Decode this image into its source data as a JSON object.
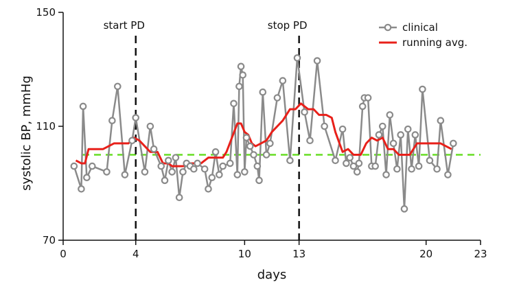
{
  "chart_data": {
    "type": "line",
    "xlabel": "days",
    "ylabel": "systolic BP, mmHg",
    "xlim": [
      0,
      23
    ],
    "ylim": [
      70,
      150
    ],
    "xticks": [
      0,
      4,
      10,
      13,
      20,
      23
    ],
    "yticks": [
      70,
      110,
      150
    ],
    "grid": false,
    "legend_position": "top-right",
    "reference_line": {
      "y": 100,
      "style": "dashed",
      "color": "#66dd22"
    },
    "annotations": [
      {
        "x": 4,
        "label": "start PD"
      },
      {
        "x": 13,
        "label": "stop PD"
      }
    ],
    "series": [
      {
        "name": "clinical",
        "color": "#8a8a8a",
        "marker": "circle",
        "points": [
          [
            0.6,
            96
          ],
          [
            1.0,
            88
          ],
          [
            1.1,
            117
          ],
          [
            1.3,
            92
          ],
          [
            1.6,
            96
          ],
          [
            2.4,
            94
          ],
          [
            2.7,
            112
          ],
          [
            3.0,
            124
          ],
          [
            3.4,
            93
          ],
          [
            3.8,
            105
          ],
          [
            4.0,
            113
          ],
          [
            4.5,
            94
          ],
          [
            4.8,
            110
          ],
          [
            5.0,
            102
          ],
          [
            5.4,
            96
          ],
          [
            5.6,
            91
          ],
          [
            5.8,
            98
          ],
          [
            6.0,
            94
          ],
          [
            6.2,
            99
          ],
          [
            6.4,
            85
          ],
          [
            6.6,
            94
          ],
          [
            6.8,
            97
          ],
          [
            7.0,
            96
          ],
          [
            7.2,
            95
          ],
          [
            7.4,
            97
          ],
          [
            7.8,
            95
          ],
          [
            8.0,
            88
          ],
          [
            8.2,
            92
          ],
          [
            8.4,
            101
          ],
          [
            8.6,
            93
          ],
          [
            8.8,
            96
          ],
          [
            9.2,
            97
          ],
          [
            9.4,
            118
          ],
          [
            9.6,
            93
          ],
          [
            9.7,
            124
          ],
          [
            9.8,
            131
          ],
          [
            9.9,
            128
          ],
          [
            10.0,
            94
          ],
          [
            10.1,
            106
          ],
          [
            10.3,
            103
          ],
          [
            10.5,
            100
          ],
          [
            10.7,
            96
          ],
          [
            10.8,
            91
          ],
          [
            11.0,
            122
          ],
          [
            11.2,
            100
          ],
          [
            11.4,
            104
          ],
          [
            11.8,
            120
          ],
          [
            12.1,
            126
          ],
          [
            12.5,
            98
          ],
          [
            12.9,
            134
          ],
          [
            13.3,
            115
          ],
          [
            13.6,
            105
          ],
          [
            14.0,
            133
          ],
          [
            14.4,
            110
          ],
          [
            15.0,
            98
          ],
          [
            15.4,
            109
          ],
          [
            15.6,
            97
          ],
          [
            15.8,
            99
          ],
          [
            16.0,
            96
          ],
          [
            16.2,
            94
          ],
          [
            16.3,
            97
          ],
          [
            16.5,
            117
          ],
          [
            16.6,
            120
          ],
          [
            16.8,
            120
          ],
          [
            17.0,
            96
          ],
          [
            17.2,
            96
          ],
          [
            17.4,
            107
          ],
          [
            17.6,
            110
          ],
          [
            17.8,
            93
          ],
          [
            18.0,
            114
          ],
          [
            18.2,
            104
          ],
          [
            18.4,
            95
          ],
          [
            18.6,
            107
          ],
          [
            18.8,
            81
          ],
          [
            19.0,
            109
          ],
          [
            19.2,
            95
          ],
          [
            19.4,
            107
          ],
          [
            19.6,
            96
          ],
          [
            19.8,
            123
          ],
          [
            20.2,
            98
          ],
          [
            20.6,
            95
          ],
          [
            20.8,
            112
          ],
          [
            21.2,
            93
          ],
          [
            21.5,
            104
          ]
        ]
      },
      {
        "name": "running avg.",
        "color": "#e8201a",
        "marker": "none",
        "points": [
          [
            0.7,
            98
          ],
          [
            1.0,
            97
          ],
          [
            1.2,
            97
          ],
          [
            1.4,
            102
          ],
          [
            2.0,
            102
          ],
          [
            2.2,
            102
          ],
          [
            2.8,
            104
          ],
          [
            3.3,
            104
          ],
          [
            3.6,
            104
          ],
          [
            3.9,
            106
          ],
          [
            4.2,
            105
          ],
          [
            4.5,
            103
          ],
          [
            4.8,
            101
          ],
          [
            5.2,
            101
          ],
          [
            5.5,
            97
          ],
          [
            5.8,
            97
          ],
          [
            6.0,
            96
          ],
          [
            6.3,
            96
          ],
          [
            6.6,
            96
          ],
          [
            7.0,
            97
          ],
          [
            7.3,
            97
          ],
          [
            7.6,
            97
          ],
          [
            8.0,
            99
          ],
          [
            8.4,
            99
          ],
          [
            8.8,
            99
          ],
          [
            9.0,
            101
          ],
          [
            9.3,
            106
          ],
          [
            9.6,
            111
          ],
          [
            9.8,
            111
          ],
          [
            10.0,
            108
          ],
          [
            10.2,
            107
          ],
          [
            10.4,
            104
          ],
          [
            10.6,
            103
          ],
          [
            10.9,
            104
          ],
          [
            11.2,
            105
          ],
          [
            11.5,
            108
          ],
          [
            11.8,
            110
          ],
          [
            12.1,
            112
          ],
          [
            12.5,
            116
          ],
          [
            12.8,
            116
          ],
          [
            13.1,
            118
          ],
          [
            13.5,
            116
          ],
          [
            13.8,
            116
          ],
          [
            14.1,
            114
          ],
          [
            14.5,
            114
          ],
          [
            14.8,
            113
          ],
          [
            15.0,
            108
          ],
          [
            15.4,
            101
          ],
          [
            15.7,
            102
          ],
          [
            16.0,
            100
          ],
          [
            16.4,
            100
          ],
          [
            16.7,
            104
          ],
          [
            17.0,
            106
          ],
          [
            17.3,
            105
          ],
          [
            17.6,
            106
          ],
          [
            17.9,
            102
          ],
          [
            18.2,
            102
          ],
          [
            18.5,
            100
          ],
          [
            18.8,
            100
          ],
          [
            19.1,
            100
          ],
          [
            19.5,
            104
          ],
          [
            19.8,
            104
          ],
          [
            20.1,
            104
          ],
          [
            20.5,
            104
          ],
          [
            20.8,
            104
          ],
          [
            21.1,
            103
          ],
          [
            21.4,
            102
          ]
        ]
      }
    ]
  }
}
